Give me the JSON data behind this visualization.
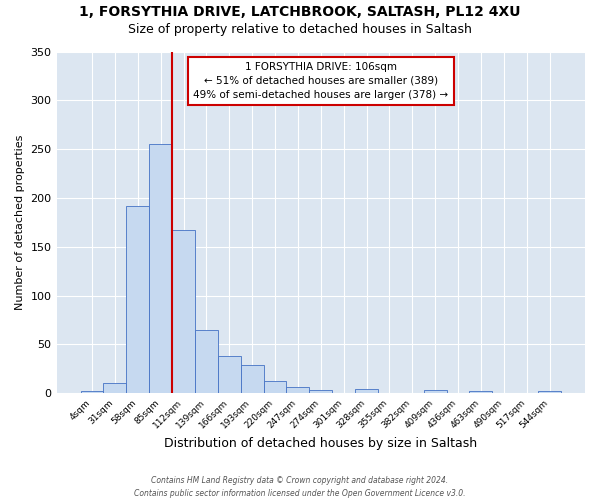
{
  "title1": "1, FORSYTHIA DRIVE, LATCHBROOK, SALTASH, PL12 4XU",
  "title2": "Size of property relative to detached houses in Saltash",
  "xlabel": "Distribution of detached houses by size in Saltash",
  "ylabel": "Number of detached properties",
  "categories": [
    "4sqm",
    "31sqm",
    "58sqm",
    "85sqm",
    "112sqm",
    "139sqm",
    "166sqm",
    "193sqm",
    "220sqm",
    "247sqm",
    "274sqm",
    "301sqm",
    "328sqm",
    "355sqm",
    "382sqm",
    "409sqm",
    "436sqm",
    "463sqm",
    "490sqm",
    "517sqm",
    "544sqm"
  ],
  "values": [
    2,
    10,
    192,
    255,
    167,
    65,
    38,
    29,
    12,
    6,
    3,
    0,
    4,
    0,
    0,
    3,
    0,
    2,
    0,
    0,
    2
  ],
  "bar_color": "#c6d9f0",
  "bar_edge_color": "#4472c4",
  "vline_x_index": 4,
  "vline_color": "#cc0000",
  "annotation_line1": "1 FORSYTHIA DRIVE: 106sqm",
  "annotation_line2": "← 51% of detached houses are smaller (389)",
  "annotation_line3": "49% of semi-detached houses are larger (378) →",
  "annotation_box_color": "#ffffff",
  "annotation_box_edge": "#cc0000",
  "ylim": [
    0,
    350
  ],
  "yticks": [
    0,
    50,
    100,
    150,
    200,
    250,
    300,
    350
  ],
  "footer_line1": "Contains HM Land Registry data © Crown copyright and database right 2024.",
  "footer_line2": "Contains public sector information licensed under the Open Government Licence v3.0.",
  "fig_bg_color": "#ffffff",
  "plot_bg_color": "#dce6f1",
  "title1_fontsize": 10,
  "title2_fontsize": 9,
  "xlabel_fontsize": 9,
  "ylabel_fontsize": 8
}
